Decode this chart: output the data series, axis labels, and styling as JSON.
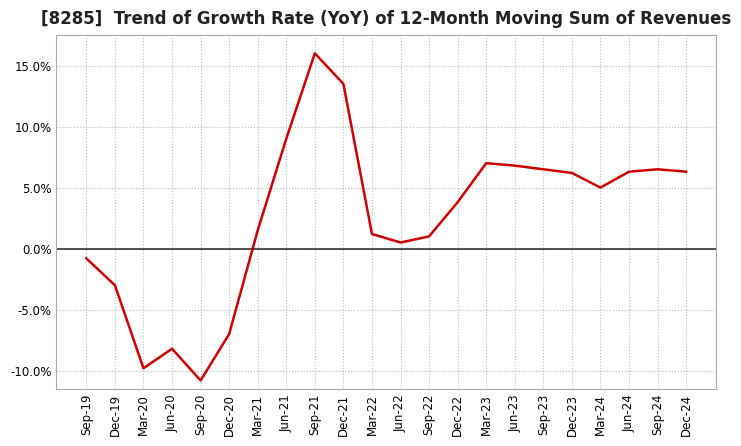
{
  "title": "[8285]  Trend of Growth Rate (YoY) of 12-Month Moving Sum of Revenues",
  "x_labels": [
    "Sep-19",
    "Dec-19",
    "Mar-20",
    "Jun-20",
    "Sep-20",
    "Dec-20",
    "Mar-21",
    "Jun-21",
    "Sep-21",
    "Dec-21",
    "Mar-22",
    "Jun-22",
    "Sep-22",
    "Dec-22",
    "Mar-23",
    "Jun-23",
    "Sep-23",
    "Dec-23",
    "Mar-24",
    "Jun-24",
    "Sep-24",
    "Dec-24"
  ],
  "y_values": [
    -0.8,
    -3.0,
    -9.8,
    -8.2,
    -10.8,
    -7.0,
    1.5,
    9.0,
    16.0,
    13.5,
    1.2,
    0.5,
    1.0,
    3.8,
    7.0,
    6.8,
    6.5,
    6.2,
    5.0,
    6.3,
    6.5,
    6.3
  ],
  "line_color": "#cc0000",
  "ylim": [
    -11.5,
    17.5
  ],
  "yticks": [
    -10.0,
    -5.0,
    0.0,
    5.0,
    10.0,
    15.0
  ],
  "grid_color": "#bbbbbb",
  "background_color": "#ffffff",
  "title_fontsize": 12,
  "tick_fontsize": 8.5
}
